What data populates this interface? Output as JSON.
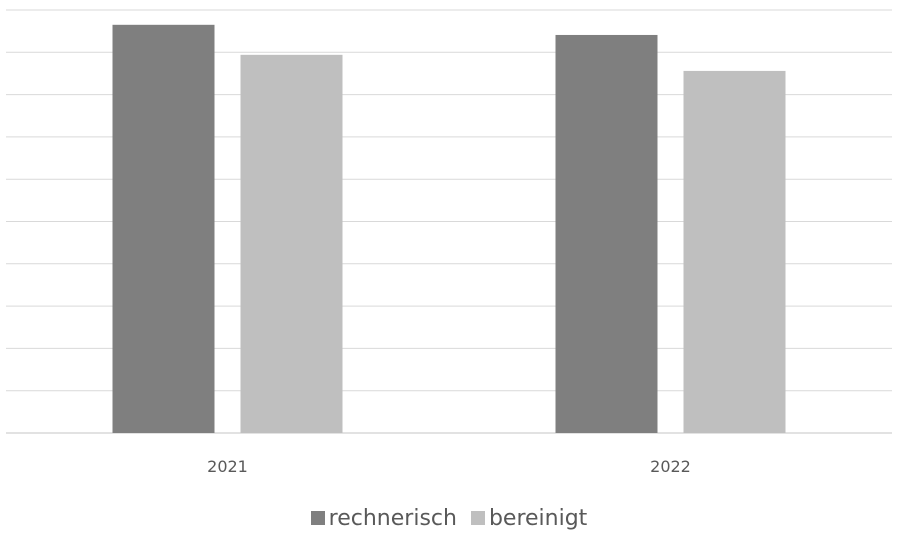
{
  "chart_data": {
    "type": "bar",
    "categories": [
      "2021",
      "2022"
    ],
    "series": [
      {
        "name": "rechnerisch",
        "values": [
          9.65,
          9.41
        ],
        "color": "#7f7f7f"
      },
      {
        "name": "bereinigt",
        "values": [
          8.94,
          8.56
        ],
        "color": "#bfbfbf"
      }
    ],
    "ylim": [
      0,
      10
    ],
    "grid": true,
    "legend": "bottom",
    "gridline_color": "#d9d9d9"
  }
}
